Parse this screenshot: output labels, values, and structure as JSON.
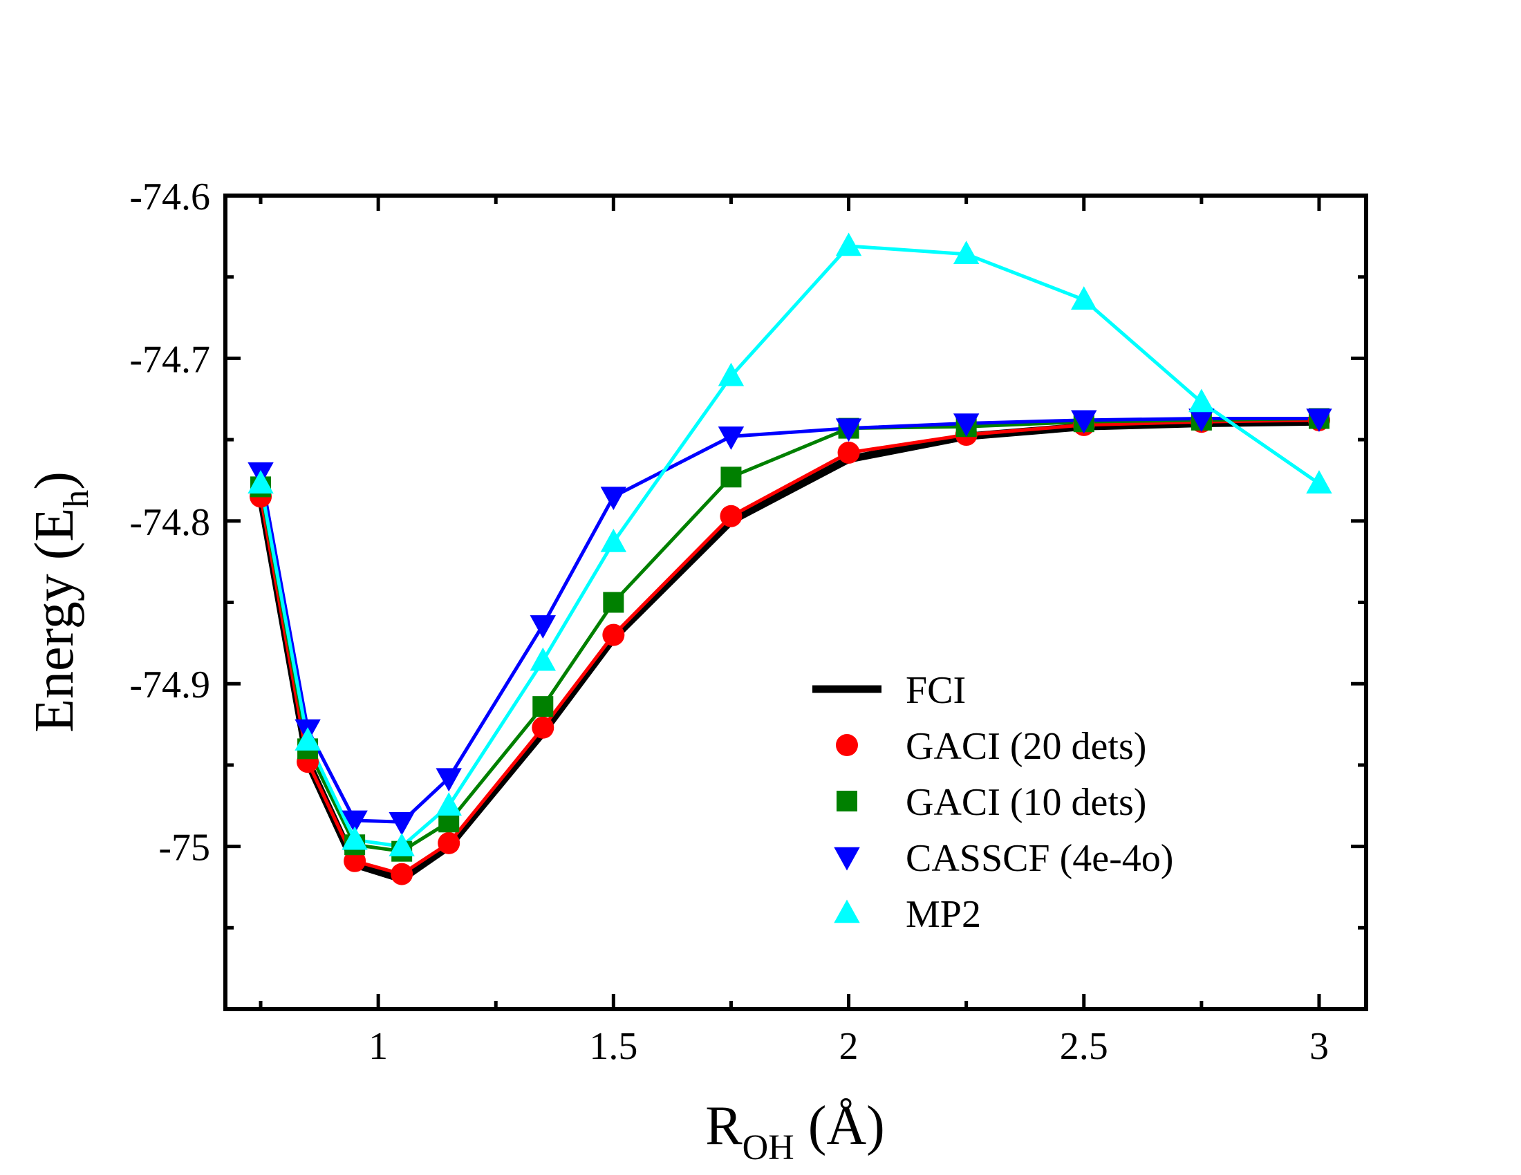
{
  "chart_data": {
    "type": "line",
    "xlabel_main": "R",
    "xlabel_sub": "OH",
    "xlabel_unit": " (Å)",
    "ylabel_main": "Energy (E",
    "ylabel_sub": "h",
    "ylabel_close": ")",
    "xlim": [
      0.675,
      3.1
    ],
    "ylim": [
      -75.1,
      -74.6
    ],
    "x_ticks": [
      1,
      1.5,
      2,
      2.5,
      3
    ],
    "x_tick_labels": [
      "1",
      "1.5",
      "2",
      "2.5",
      "3"
    ],
    "y_ticks": [
      -74.6,
      -74.7,
      -74.8,
      -74.9,
      -75.0
    ],
    "y_tick_labels": [
      "-74.6",
      "-74.7",
      "-74.8",
      "-74.9",
      "-75"
    ],
    "x": [
      0.75,
      0.85,
      0.95,
      1.05,
      1.15,
      1.35,
      1.5,
      1.75,
      2.0,
      2.25,
      2.5,
      2.75,
      3.0
    ],
    "series": [
      {
        "name": "FCI",
        "color": "#000000",
        "marker": "none",
        "values": [
          -74.785,
          -74.948,
          -75.011,
          -75.02,
          -75.0,
          -74.93,
          -74.872,
          -74.8,
          -74.762,
          -74.748,
          -74.742,
          -74.74,
          -74.739
        ]
      },
      {
        "name": "GACI (20 dets)",
        "color": "#ff0000",
        "marker": "circle",
        "values": [
          -74.785,
          -74.948,
          -75.009,
          -75.017,
          -74.998,
          -74.927,
          -74.87,
          -74.797,
          -74.758,
          -74.747,
          -74.741,
          -74.739,
          -74.738
        ]
      },
      {
        "name": "GACI (10 dets)",
        "color": "#008000",
        "marker": "square",
        "values": [
          -74.779,
          -74.94,
          -74.999,
          -75.003,
          -74.985,
          -74.914,
          -74.85,
          -74.773,
          -74.743,
          -74.742,
          -74.739,
          -74.738,
          -74.737
        ]
      },
      {
        "name": "CASSCF (4e-4o)",
        "color": "#0000ff",
        "marker": "triangle-down",
        "values": [
          -74.77,
          -74.928,
          -74.984,
          -74.985,
          -74.958,
          -74.864,
          -74.785,
          -74.748,
          -74.743,
          -74.74,
          -74.738,
          -74.737,
          -74.737
        ]
      },
      {
        "name": "MP2",
        "color": "#00ffff",
        "marker": "triangle-up",
        "values": [
          -74.777,
          -74.935,
          -74.996,
          -75.0,
          -74.975,
          -74.886,
          -74.813,
          -74.711,
          -74.631,
          -74.636,
          -74.664,
          -74.727,
          -74.777
        ]
      }
    ],
    "legend_position": "lower-right"
  }
}
